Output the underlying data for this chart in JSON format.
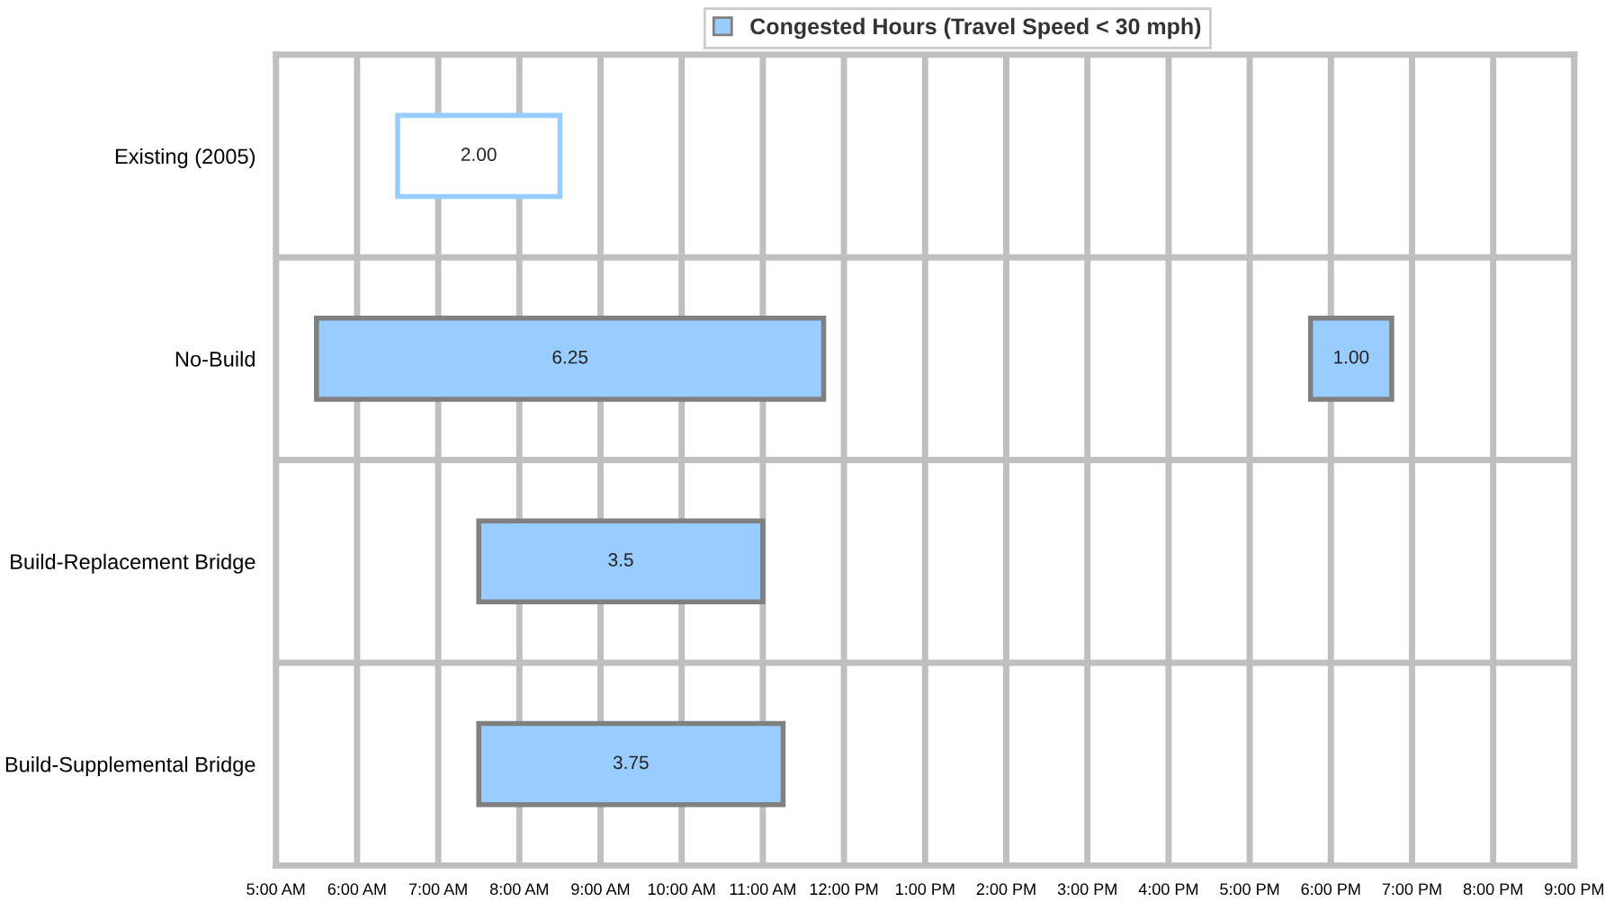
{
  "chart_data": {
    "type": "bar",
    "orientation": "horizontal",
    "categories": [
      "Existing (2005)",
      "No-Build",
      "Build-Replacement Bridge",
      "Build-Supplemental Bridge"
    ],
    "series": [
      {
        "name": "Congested Hours (Travel Speed < 30 mph)",
        "color": "#99ccff",
        "colors": [
          "#ffffff",
          "#99ccff",
          "#99ccff",
          "#99ccff"
        ],
        "base": [
          6.5,
          5.5,
          7.5,
          7.5
        ],
        "values": [
          2.0,
          6.25,
          3.5,
          3.75
        ],
        "value_labels": [
          "2.00",
          "6.25",
          "3.5",
          "3.75"
        ]
      },
      {
        "color": "#99ccff",
        "base": [
          null,
          17.75,
          null,
          null
        ],
        "values": [
          null,
          1.0,
          null,
          null
        ],
        "value_labels": [
          null,
          "1.00",
          null,
          null
        ]
      }
    ],
    "xlim": [
      5,
      21
    ],
    "xticks": [
      {
        "value": 5,
        "label": "5:00 AM"
      },
      {
        "value": 6,
        "label": "6:00 AM"
      },
      {
        "value": 7,
        "label": "7:00 AM"
      },
      {
        "value": 8,
        "label": "8:00 AM"
      },
      {
        "value": 9,
        "label": "9:00 AM"
      },
      {
        "value": 10,
        "label": "10:00 AM"
      },
      {
        "value": 11,
        "label": "11:00 AM"
      },
      {
        "value": 12,
        "label": "12:00 PM"
      },
      {
        "value": 13,
        "label": "1:00 PM"
      },
      {
        "value": 14,
        "label": "2:00 PM"
      },
      {
        "value": 15,
        "label": "3:00 PM"
      },
      {
        "value": 16,
        "label": "4:00 PM"
      },
      {
        "value": 17,
        "label": "5:00 PM"
      },
      {
        "value": 18,
        "label": "6:00 PM"
      },
      {
        "value": 19,
        "label": "7:00 PM"
      },
      {
        "value": 20,
        "label": "8:00 PM"
      },
      {
        "value": 21,
        "label": "9:00 PM"
      }
    ],
    "grid": true,
    "legend": "top"
  }
}
